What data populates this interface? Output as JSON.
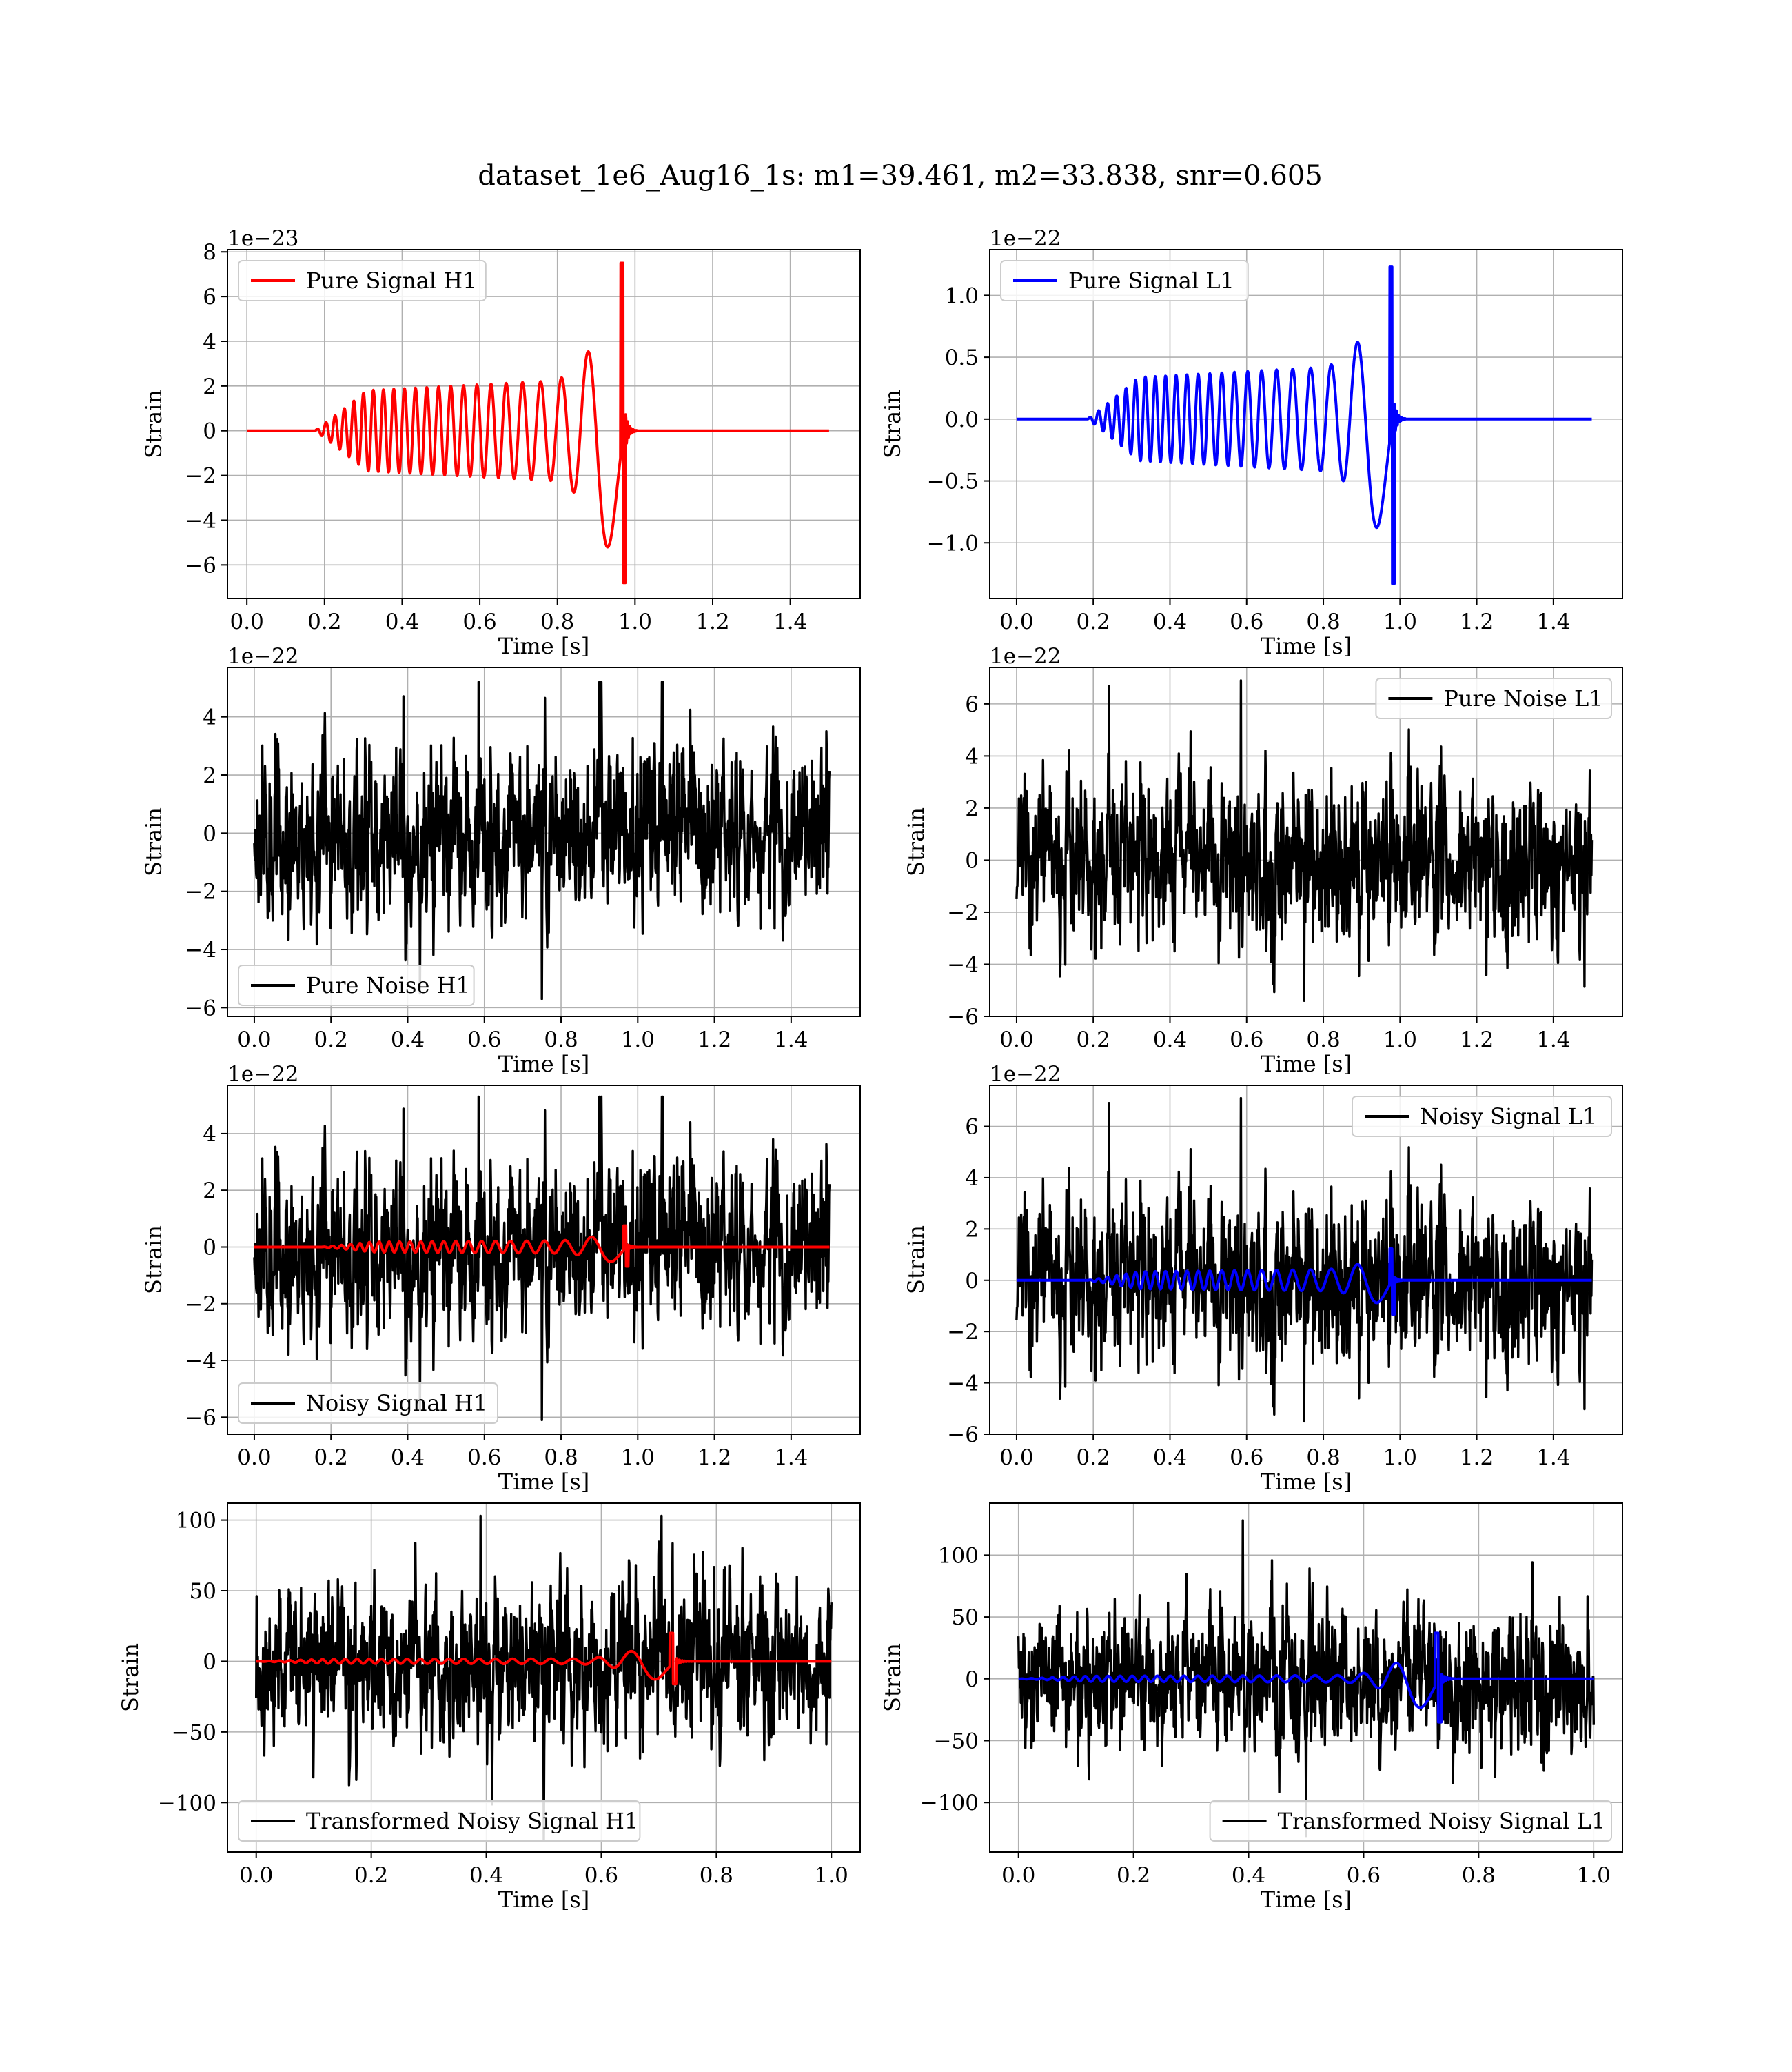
{
  "figure": {
    "title": "dataset_1e6_Aug16_1s: m1=39.461, m2=33.838, snr=0.605"
  },
  "colors": {
    "h1_signal": "#ff0000",
    "l1_signal": "#0000ff",
    "noise": "#000000",
    "grid": "#b0b0b0"
  },
  "chart_data": [
    {
      "id": "pure-signal-h1",
      "type": "line",
      "xlabel": "Time [s]",
      "ylabel": "Strain",
      "offset_text": "1e−23",
      "xlim": [
        -0.05,
        1.58
      ],
      "ylim": [
        -7.5,
        8.1
      ],
      "xticks": [
        0.0,
        0.2,
        0.4,
        0.6,
        0.8,
        1.0,
        1.2,
        1.4
      ],
      "xtick_labels": [
        "0.0",
        "0.2",
        "0.4",
        "0.6",
        "0.8",
        "1.0",
        "1.2",
        "1.4"
      ],
      "yticks": [
        -6,
        -4,
        -2,
        0,
        2,
        4,
        6,
        8
      ],
      "ytick_labels": [
        "−6",
        "−4",
        "−2",
        "0",
        "2",
        "4",
        "6",
        "8"
      ],
      "legend": {
        "position": "upper left",
        "entries": [
          {
            "label": "Pure Signal H1",
            "color": "#ff0000"
          }
        ]
      },
      "series": [
        {
          "name": "Pure Signal H1",
          "color": "#ff0000",
          "kind": "chirp",
          "params": {
            "t_start": 0.175,
            "t_merge": 0.975,
            "t_end": 1.5,
            "amp_early": 2.4,
            "amp_peak": 7.5,
            "amp_min": -6.8,
            "cycles": 22
          }
        }
      ]
    },
    {
      "id": "pure-signal-l1",
      "type": "line",
      "xlabel": "Time [s]",
      "ylabel": "Strain",
      "offset_text": "1e−22",
      "xlim": [
        -0.07,
        1.58
      ],
      "ylim": [
        -1.45,
        1.37
      ],
      "xticks": [
        0.0,
        0.2,
        0.4,
        0.6,
        0.8,
        1.0,
        1.2,
        1.4
      ],
      "xtick_labels": [
        "0.0",
        "0.2",
        "0.4",
        "0.6",
        "0.8",
        "1.0",
        "1.2",
        "1.4"
      ],
      "yticks": [
        -1.0,
        -0.5,
        0.0,
        0.5,
        1.0
      ],
      "ytick_labels": [
        "−1.0",
        "−0.5",
        "0.0",
        "0.5",
        "1.0"
      ],
      "legend": {
        "position": "upper left",
        "entries": [
          {
            "label": "Pure Signal L1",
            "color": "#0000ff"
          }
        ]
      },
      "series": [
        {
          "name": "Pure Signal L1",
          "color": "#0000ff",
          "kind": "chirp",
          "params": {
            "t_start": 0.185,
            "t_merge": 0.985,
            "t_end": 1.5,
            "amp_early": 0.45,
            "amp_peak": 1.23,
            "amp_min": -1.33,
            "cycles": 22
          }
        }
      ]
    },
    {
      "id": "pure-noise-h1",
      "type": "line",
      "xlabel": "Time [s]",
      "ylabel": "Strain",
      "offset_text": "1e−22",
      "xlim": [
        -0.07,
        1.58
      ],
      "ylim": [
        -6.3,
        5.7
      ],
      "xticks": [
        0.0,
        0.2,
        0.4,
        0.6,
        0.8,
        1.0,
        1.2,
        1.4
      ],
      "xtick_labels": [
        "0.0",
        "0.2",
        "0.4",
        "0.6",
        "0.8",
        "1.0",
        "1.2",
        "1.4"
      ],
      "yticks": [
        -6,
        -4,
        -2,
        0,
        2,
        4
      ],
      "ytick_labels": [
        "−6",
        "−4",
        "−2",
        "0",
        "2",
        "4"
      ],
      "legend": {
        "position": "lower left",
        "entries": [
          {
            "label": "Pure Noise H1",
            "color": "#000000"
          }
        ]
      },
      "series": [
        {
          "name": "Pure Noise H1",
          "color": "#000000",
          "kind": "noise",
          "params": {
            "t_start": 0.0,
            "t_end": 1.5,
            "sigma": 1.4,
            "max": 5.2,
            "min": -5.7,
            "seed": 11
          }
        }
      ]
    },
    {
      "id": "pure-noise-l1",
      "type": "line",
      "xlabel": "Time [s]",
      "ylabel": "Strain",
      "offset_text": "1e−22",
      "xlim": [
        -0.07,
        1.58
      ],
      "ylim": [
        -6.0,
        7.4
      ],
      "xticks": [
        0.0,
        0.2,
        0.4,
        0.6,
        0.8,
        1.0,
        1.2,
        1.4
      ],
      "xtick_labels": [
        "0.0",
        "0.2",
        "0.4",
        "0.6",
        "0.8",
        "1.0",
        "1.2",
        "1.4"
      ],
      "yticks": [
        -6,
        -4,
        -2,
        0,
        2,
        4,
        6
      ],
      "ytick_labels": [
        "−6",
        "−4",
        "−2",
        "0",
        "2",
        "4",
        "6"
      ],
      "legend": {
        "position": "upper right",
        "entries": [
          {
            "label": "Pure Noise L1",
            "color": "#000000"
          }
        ]
      },
      "series": [
        {
          "name": "Pure Noise L1",
          "color": "#000000",
          "kind": "noise",
          "params": {
            "t_start": 0.0,
            "t_end": 1.5,
            "sigma": 1.5,
            "max": 6.9,
            "min": -5.4,
            "seed": 23
          }
        }
      ]
    },
    {
      "id": "noisy-signal-h1",
      "type": "line",
      "xlabel": "Time [s]",
      "ylabel": "Strain",
      "offset_text": "1e−22",
      "xlim": [
        -0.07,
        1.58
      ],
      "ylim": [
        -6.6,
        5.7
      ],
      "xticks": [
        0.0,
        0.2,
        0.4,
        0.6,
        0.8,
        1.0,
        1.2,
        1.4
      ],
      "xtick_labels": [
        "0.0",
        "0.2",
        "0.4",
        "0.6",
        "0.8",
        "1.0",
        "1.2",
        "1.4"
      ],
      "yticks": [
        -6,
        -4,
        -2,
        0,
        2,
        4
      ],
      "ytick_labels": [
        "−6",
        "−4",
        "−2",
        "0",
        "2",
        "4"
      ],
      "legend": {
        "position": "lower left",
        "entries": [
          {
            "label": "Noisy Signal H1",
            "color": "#000000"
          }
        ]
      },
      "series": [
        {
          "name": "Noisy Signal H1",
          "color": "#000000",
          "kind": "noise",
          "params": {
            "t_start": 0.0,
            "t_end": 1.5,
            "sigma": 1.45,
            "max": 5.3,
            "min": -6.1,
            "seed": 11
          }
        },
        {
          "name": "",
          "color": "#ff0000",
          "kind": "chirp",
          "params": {
            "t_start": 0.175,
            "t_merge": 0.975,
            "t_end": 1.5,
            "amp_early": 0.24,
            "amp_peak": 0.75,
            "amp_min": -0.68,
            "cycles": 22
          }
        }
      ]
    },
    {
      "id": "noisy-signal-l1",
      "type": "line",
      "xlabel": "Time [s]",
      "ylabel": "Strain",
      "offset_text": "1e−22",
      "xlim": [
        -0.07,
        1.58
      ],
      "ylim": [
        -6.0,
        7.6
      ],
      "xticks": [
        0.0,
        0.2,
        0.4,
        0.6,
        0.8,
        1.0,
        1.2,
        1.4
      ],
      "xtick_labels": [
        "0.0",
        "0.2",
        "0.4",
        "0.6",
        "0.8",
        "1.0",
        "1.2",
        "1.4"
      ],
      "yticks": [
        -6,
        -4,
        -2,
        0,
        2,
        4,
        6
      ],
      "ytick_labels": [
        "−6",
        "−4",
        "−2",
        "0",
        "2",
        "4",
        "6"
      ],
      "legend": {
        "position": "upper right",
        "entries": [
          {
            "label": "Noisy Signal L1",
            "color": "#000000"
          }
        ]
      },
      "series": [
        {
          "name": "Noisy Signal L1",
          "color": "#000000",
          "kind": "noise",
          "params": {
            "t_start": 0.0,
            "t_end": 1.5,
            "sigma": 1.55,
            "max": 7.1,
            "min": -5.5,
            "seed": 23
          }
        },
        {
          "name": "",
          "color": "#0000ff",
          "kind": "chirp",
          "params": {
            "t_start": 0.185,
            "t_merge": 0.985,
            "t_end": 1.5,
            "amp_early": 0.45,
            "amp_peak": 1.23,
            "amp_min": -1.33,
            "cycles": 22
          }
        }
      ]
    },
    {
      "id": "transformed-noisy-signal-h1",
      "type": "line",
      "xlabel": "Time [s]",
      "ylabel": "Strain",
      "offset_text": "",
      "xlim": [
        -0.05,
        1.05
      ],
      "ylim": [
        -135,
        112
      ],
      "xticks": [
        0.0,
        0.2,
        0.4,
        0.6,
        0.8,
        1.0
      ],
      "xtick_labels": [
        "0.0",
        "0.2",
        "0.4",
        "0.6",
        "0.8",
        "1.0"
      ],
      "yticks": [
        -100,
        -50,
        0,
        50,
        100
      ],
      "ytick_labels": [
        "−100",
        "−50",
        "0",
        "50",
        "100"
      ],
      "legend": {
        "position": "lower left",
        "entries": [
          {
            "label": "Transformed Noisy Signal H1",
            "color": "#000000"
          }
        ]
      },
      "series": [
        {
          "name": "Transformed Noisy Signal H1",
          "color": "#000000",
          "kind": "noise",
          "params": {
            "t_start": 0.0,
            "t_end": 1.0,
            "sigma": 26,
            "max": 103,
            "min": -127,
            "seed": 37
          }
        },
        {
          "name": "",
          "color": "#ff0000",
          "kind": "chirp",
          "params": {
            "t_start": 0.0,
            "t_merge": 0.73,
            "t_end": 1.0,
            "amp_early": 2,
            "amp_peak": 20,
            "amp_min": -16,
            "cycles": 26
          }
        }
      ]
    },
    {
      "id": "transformed-noisy-signal-l1",
      "type": "line",
      "xlabel": "Time [s]",
      "ylabel": "Strain",
      "offset_text": "",
      "xlim": [
        -0.05,
        1.05
      ],
      "ylim": [
        -140,
        142
      ],
      "xticks": [
        0.0,
        0.2,
        0.4,
        0.6,
        0.8,
        1.0
      ],
      "xtick_labels": [
        "0.0",
        "0.2",
        "0.4",
        "0.6",
        "0.8",
        "1.0"
      ],
      "yticks": [
        -100,
        -50,
        0,
        50,
        100
      ],
      "ytick_labels": [
        "−100",
        "−50",
        "0",
        "50",
        "100"
      ],
      "legend": {
        "position": "lower right",
        "entries": [
          {
            "label": "Transformed Noisy Signal L1",
            "color": "#000000"
          }
        ]
      },
      "series": [
        {
          "name": "Transformed Noisy Signal L1",
          "color": "#000000",
          "kind": "noise",
          "params": {
            "t_start": 0.0,
            "t_end": 1.0,
            "sigma": 27,
            "max": 128,
            "min": -127,
            "seed": 53
          }
        },
        {
          "name": "",
          "color": "#0000ff",
          "kind": "chirp",
          "params": {
            "t_start": 0.0,
            "t_merge": 0.735,
            "t_end": 1.0,
            "amp_early": 3,
            "amp_peak": 37,
            "amp_min": -35,
            "cycles": 26
          }
        }
      ]
    }
  ]
}
